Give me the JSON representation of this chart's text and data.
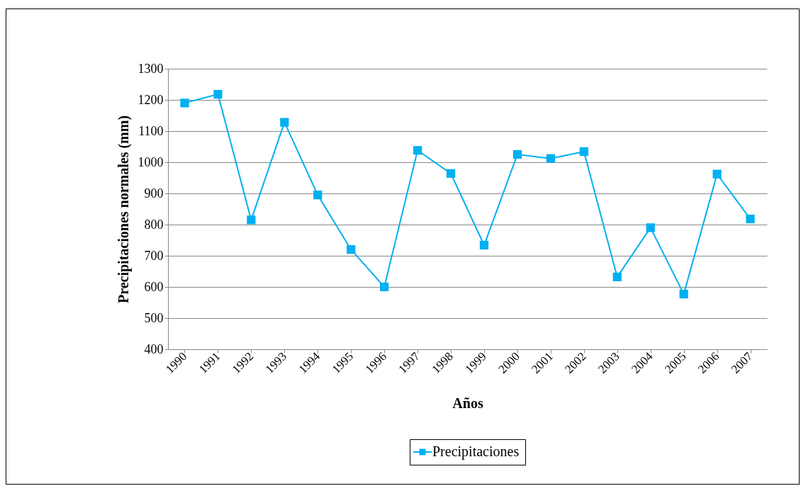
{
  "chart_data": {
    "type": "line",
    "xlabel": "Años",
    "ylabel": "Precipitaciones normales (mm)",
    "categories": [
      "1990",
      "1991",
      "1992",
      "1993",
      "1994",
      "1995",
      "1996",
      "1997",
      "1998",
      "1999",
      "2000",
      "2001",
      "2002",
      "2003",
      "2004",
      "2005",
      "2006",
      "2007"
    ],
    "series": [
      {
        "name": "Precipitaciones",
        "color": "#00b0f0",
        "values": [
          1190,
          1218,
          815,
          1128,
          895,
          720,
          600,
          1038,
          964,
          734,
          1025,
          1012,
          1034,
          632,
          790,
          577,
          962,
          818
        ]
      }
    ],
    "ylim": [
      400,
      1300
    ],
    "yticks": [
      400,
      500,
      600,
      700,
      800,
      900,
      1000,
      1100,
      1200,
      1300
    ],
    "grid": "y",
    "legend": "bottom",
    "marker": "square",
    "line_style": "solid"
  }
}
